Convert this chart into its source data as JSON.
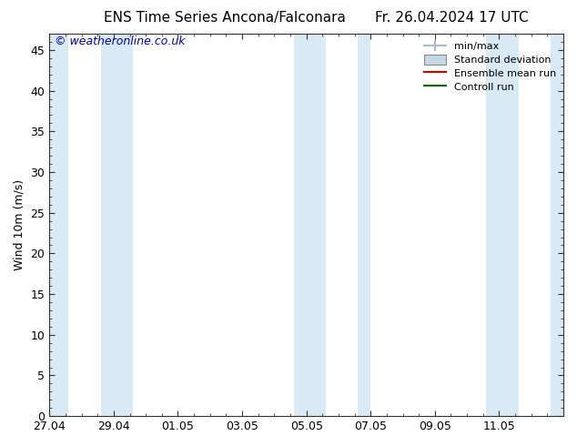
{
  "title_left": "ENS Time Series Ancona/Falconara",
  "title_right": "Fr. 26.04.2024 17 UTC",
  "ylabel": "Wind 10m (m/s)",
  "watermark": "© weatheronline.co.uk",
  "ylim": [
    0,
    47
  ],
  "yticks": [
    0,
    5,
    10,
    15,
    20,
    25,
    30,
    35,
    40,
    45
  ],
  "xlim_start": 0.0,
  "xlim_end": 16.0,
  "xtick_labels": [
    "27.04",
    "29.04",
    "01.05",
    "03.05",
    "05.05",
    "07.05",
    "09.05",
    "11.05"
  ],
  "xtick_positions": [
    0,
    2,
    4,
    6,
    8,
    10,
    12,
    14
  ],
  "shaded_bands": [
    {
      "x_start": -0.1,
      "x_end": 0.6
    },
    {
      "x_start": 1.6,
      "x_end": 2.6
    },
    {
      "x_start": 7.6,
      "x_end": 8.6
    },
    {
      "x_start": 9.6,
      "x_end": 10.0
    },
    {
      "x_start": 13.6,
      "x_end": 14.6
    },
    {
      "x_start": 15.6,
      "x_end": 16.1
    }
  ],
  "shade_color": "#daeaf5",
  "bg_color": "#ffffff",
  "legend_entries": [
    {
      "label": "min/max",
      "color": "#a8bfd0",
      "type": "errorbar"
    },
    {
      "label": "Standard deviation",
      "color": "#c5d8e8",
      "type": "box"
    },
    {
      "label": "Ensemble mean run",
      "color": "#cc0000",
      "type": "line"
    },
    {
      "label": "Controll run",
      "color": "#007700",
      "type": "line"
    }
  ],
  "tick_color": "#333333",
  "font_size_title": 11,
  "font_size_axis": 9,
  "font_size_watermark": 9,
  "watermark_color": "#0000bb",
  "figsize": [
    6.34,
    4.9
  ],
  "dpi": 100
}
